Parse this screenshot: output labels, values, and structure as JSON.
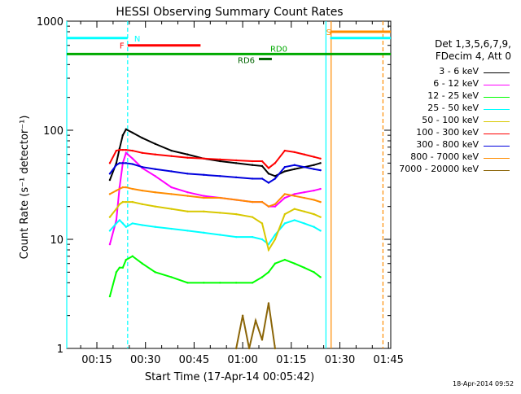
{
  "chart_data": {
    "type": "line",
    "title": "HESSI Observing Summary Count Rates",
    "xlabel": "Start Time (17-Apr-14 00:05:42)",
    "ylabel": "Count Rate (s⁻¹ detector⁻¹)",
    "y_scale": "log",
    "ylim": [
      1,
      1000
    ],
    "xlim_minutes": [
      5.7,
      105.7
    ],
    "x_ticks": [
      {
        "label": "00:15",
        "min": 15
      },
      {
        "label": "00:30",
        "min": 30
      },
      {
        "label": "00:45",
        "min": 45
      },
      {
        "label": "01:00",
        "min": 60
      },
      {
        "label": "01:15",
        "min": 75
      },
      {
        "label": "01:30",
        "min": 90
      },
      {
        "label": "01:45",
        "min": 105
      }
    ],
    "y_ticks": [
      {
        "label": "1",
        "value": 1
      },
      {
        "label": "10",
        "value": 10
      },
      {
        "label": "100",
        "value": 100
      },
      {
        "label": "1000",
        "value": 1000
      }
    ],
    "legend_header": [
      "Det 1,3,5,6,7,9,",
      "FDecim 4, Att 0"
    ],
    "series": [
      {
        "name": "3 - 6 keV",
        "color": "#000000",
        "points": [
          [
            19,
            35
          ],
          [
            21,
            50
          ],
          [
            22,
            68
          ],
          [
            23,
            90
          ],
          [
            24,
            102
          ],
          [
            26,
            95
          ],
          [
            29,
            85
          ],
          [
            33,
            75
          ],
          [
            38,
            65
          ],
          [
            43,
            60
          ],
          [
            48,
            55
          ],
          [
            53,
            52
          ],
          [
            58,
            50
          ],
          [
            63,
            48
          ],
          [
            66,
            47
          ],
          [
            68,
            40
          ],
          [
            70,
            38
          ],
          [
            73,
            42
          ],
          [
            76,
            44
          ],
          [
            79,
            46
          ],
          [
            82,
            48
          ],
          [
            84,
            50
          ]
        ]
      },
      {
        "name": "6 - 12 keV",
        "color": "#ff00ff",
        "points": [
          [
            19,
            9
          ],
          [
            21,
            15
          ],
          [
            22,
            30
          ],
          [
            23,
            50
          ],
          [
            24,
            62
          ],
          [
            26,
            55
          ],
          [
            29,
            45
          ],
          [
            33,
            38
          ],
          [
            38,
            30
          ],
          [
            43,
            27
          ],
          [
            48,
            25
          ],
          [
            53,
            24
          ],
          [
            58,
            23
          ],
          [
            63,
            22
          ],
          [
            66,
            22
          ],
          [
            68,
            20
          ],
          [
            70,
            20
          ],
          [
            73,
            24
          ],
          [
            76,
            26
          ],
          [
            79,
            27
          ],
          [
            82,
            28
          ],
          [
            84,
            29
          ]
        ]
      },
      {
        "name": "12 - 25 keV",
        "color": "#00ff00",
        "points": [
          [
            19,
            3
          ],
          [
            21,
            5
          ],
          [
            22,
            5.5
          ],
          [
            23,
            5.5
          ],
          [
            24,
            6.5
          ],
          [
            26,
            7
          ],
          [
            29,
            6
          ],
          [
            33,
            5
          ],
          [
            38,
            4.5
          ],
          [
            43,
            4
          ],
          [
            48,
            4
          ],
          [
            53,
            4
          ],
          [
            58,
            4
          ],
          [
            63,
            4
          ],
          [
            66,
            4.5
          ],
          [
            68,
            5
          ],
          [
            70,
            6
          ],
          [
            73,
            6.5
          ],
          [
            76,
            6
          ],
          [
            79,
            5.5
          ],
          [
            82,
            5
          ],
          [
            84,
            4.5
          ]
        ]
      },
      {
        "name": "25 - 50 keV",
        "color": "#00ffff",
        "points": [
          [
            19,
            12
          ],
          [
            21,
            14
          ],
          [
            22,
            15
          ],
          [
            23,
            14
          ],
          [
            24,
            13
          ],
          [
            26,
            14
          ],
          [
            29,
            13.5
          ],
          [
            33,
            13
          ],
          [
            38,
            12.5
          ],
          [
            43,
            12
          ],
          [
            48,
            11.5
          ],
          [
            53,
            11
          ],
          [
            58,
            10.5
          ],
          [
            63,
            10.5
          ],
          [
            66,
            10
          ],
          [
            68,
            9
          ],
          [
            70,
            11
          ],
          [
            73,
            14
          ],
          [
            76,
            15
          ],
          [
            79,
            14
          ],
          [
            82,
            13
          ],
          [
            84,
            12
          ]
        ]
      },
      {
        "name": "50 - 100 keV",
        "color": "#d8c800",
        "points": [
          [
            19,
            16
          ],
          [
            21,
            19
          ],
          [
            22,
            21
          ],
          [
            23,
            22
          ],
          [
            24,
            22
          ],
          [
            26,
            22
          ],
          [
            29,
            21
          ],
          [
            33,
            20
          ],
          [
            38,
            19
          ],
          [
            43,
            18
          ],
          [
            48,
            18
          ],
          [
            53,
            17.5
          ],
          [
            58,
            17
          ],
          [
            63,
            16
          ],
          [
            66,
            14
          ],
          [
            68,
            8
          ],
          [
            70,
            10
          ],
          [
            73,
            17
          ],
          [
            76,
            19
          ],
          [
            79,
            18
          ],
          [
            82,
            17
          ],
          [
            84,
            16
          ]
        ]
      },
      {
        "name": "100 - 300 keV",
        "color": "#ff0000",
        "points": [
          [
            19,
            50
          ],
          [
            21,
            65
          ],
          [
            22,
            66
          ],
          [
            23,
            66
          ],
          [
            24,
            66
          ],
          [
            26,
            65
          ],
          [
            29,
            62
          ],
          [
            33,
            60
          ],
          [
            38,
            58
          ],
          [
            43,
            56
          ],
          [
            48,
            55
          ],
          [
            53,
            54
          ],
          [
            58,
            53
          ],
          [
            63,
            52
          ],
          [
            66,
            52
          ],
          [
            68,
            45
          ],
          [
            70,
            50
          ],
          [
            73,
            65
          ],
          [
            76,
            63
          ],
          [
            79,
            60
          ],
          [
            82,
            57
          ],
          [
            84,
            55
          ]
        ]
      },
      {
        "name": "300 - 800 keV",
        "color": "#0000dd",
        "points": [
          [
            19,
            40
          ],
          [
            21,
            48
          ],
          [
            22,
            50
          ],
          [
            23,
            50
          ],
          [
            24,
            50
          ],
          [
            26,
            49
          ],
          [
            29,
            46
          ],
          [
            33,
            44
          ],
          [
            38,
            42
          ],
          [
            43,
            40
          ],
          [
            48,
            39
          ],
          [
            53,
            38
          ],
          [
            58,
            37
          ],
          [
            63,
            36
          ],
          [
            66,
            36
          ],
          [
            68,
            33
          ],
          [
            70,
            36
          ],
          [
            73,
            46
          ],
          [
            76,
            48
          ],
          [
            79,
            46
          ],
          [
            82,
            44
          ],
          [
            84,
            43
          ]
        ]
      },
      {
        "name": "800 - 7000 keV",
        "color": "#ff8c00",
        "points": [
          [
            19,
            26
          ],
          [
            21,
            28
          ],
          [
            22,
            29
          ],
          [
            23,
            30
          ],
          [
            24,
            30
          ],
          [
            26,
            29
          ],
          [
            29,
            28
          ],
          [
            33,
            27
          ],
          [
            38,
            26
          ],
          [
            43,
            25
          ],
          [
            48,
            24
          ],
          [
            53,
            24
          ],
          [
            58,
            23
          ],
          [
            63,
            22
          ],
          [
            66,
            22
          ],
          [
            68,
            20
          ],
          [
            70,
            21
          ],
          [
            73,
            26
          ],
          [
            76,
            25
          ],
          [
            79,
            24
          ],
          [
            82,
            23
          ],
          [
            84,
            22
          ]
        ]
      },
      {
        "name": "7000 - 20000 keV",
        "color": "#8b6508",
        "points": [
          [
            58,
            1
          ],
          [
            60,
            2
          ],
          [
            62,
            1
          ],
          [
            64,
            1.8
          ],
          [
            66,
            1.2
          ],
          [
            68,
            2.6
          ],
          [
            70,
            1
          ]
        ]
      }
    ],
    "state_bars": [
      {
        "label": "N",
        "color": "#00ffff",
        "y": 700,
        "segments": [
          [
            5.7,
            24.5
          ],
          [
            87,
            105.7
          ]
        ]
      },
      {
        "label": "F",
        "color": "#ff0000",
        "y": 600,
        "segments": [
          [
            24.5,
            47
          ]
        ]
      },
      {
        "label": "S",
        "color": "#ff8c00",
        "y": 800,
        "segments": [
          [
            87,
            105.7
          ]
        ]
      },
      {
        "label": "RD0",
        "color": "#00aa00",
        "y": 500,
        "segments": [
          [
            5.7,
            105.7
          ]
        ]
      },
      {
        "label": "RD6",
        "color": "#006400",
        "y": 450,
        "segments": [
          [
            65,
            69
          ]
        ]
      }
    ],
    "vlines": [
      {
        "min": 5.7,
        "color": "#00ffff",
        "style": "solid"
      },
      {
        "min": 24.5,
        "color": "#00ffff",
        "style": "dashed"
      },
      {
        "min": 85.7,
        "color": "#00ffff",
        "style": "solid"
      },
      {
        "min": 87.3,
        "color": "#ff8c00",
        "style": "solid"
      },
      {
        "min": 103.3,
        "color": "#ff8c00",
        "style": "dashed"
      }
    ]
  },
  "date_stamp": "18-Apr-2014 09:52"
}
